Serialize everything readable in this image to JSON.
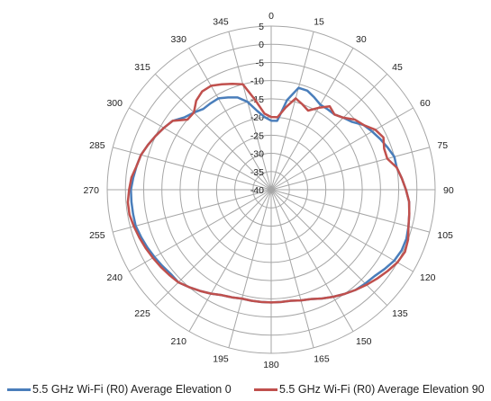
{
  "chart_data": {
    "type": "polar-line",
    "angle_ticks": [
      "0",
      "15",
      "30",
      "45",
      "60",
      "75",
      "90",
      "105",
      "120",
      "135",
      "150",
      "165",
      "180",
      "195",
      "210",
      "225",
      "240",
      "255",
      "270",
      "285",
      "300",
      "315",
      "330",
      "345"
    ],
    "radial_ticks": [
      "5",
      "0",
      "-5",
      "-10",
      "-15",
      "-20",
      "-25",
      "-30",
      "-35",
      "-40"
    ],
    "rlim": [
      -40,
      5
    ],
    "grid": true,
    "legend_position": "bottom",
    "series": [
      {
        "name": "5.5 GHz Wi-Fi (R0) Average Elevation 0",
        "color": "#4a7ebb",
        "points": [
          [
            0,
            -21
          ],
          [
            5,
            -21
          ],
          [
            10,
            -15
          ],
          [
            15,
            -11
          ],
          [
            20,
            -11
          ],
          [
            25,
            -12
          ],
          [
            30,
            -13
          ],
          [
            35,
            -13
          ],
          [
            40,
            -13
          ],
          [
            45,
            -12
          ],
          [
            50,
            -11
          ],
          [
            55,
            -9
          ],
          [
            60,
            -8
          ],
          [
            65,
            -7
          ],
          [
            70,
            -6
          ],
          [
            75,
            -5
          ],
          [
            80,
            -5
          ],
          [
            85,
            -4
          ],
          [
            90,
            -3
          ],
          [
            95,
            -2
          ],
          [
            100,
            -1.5
          ],
          [
            105,
            -1
          ],
          [
            110,
            -0.5
          ],
          [
            115,
            -0.5
          ],
          [
            120,
            -1
          ],
          [
            125,
            -2
          ],
          [
            130,
            -3
          ],
          [
            135,
            -3.5
          ],
          [
            140,
            -4
          ],
          [
            145,
            -5
          ],
          [
            150,
            -6
          ],
          [
            155,
            -7
          ],
          [
            160,
            -8
          ],
          [
            165,
            -8.5
          ],
          [
            170,
            -9
          ],
          [
            175,
            -9
          ],
          [
            180,
            -9
          ],
          [
            185,
            -9
          ],
          [
            190,
            -9
          ],
          [
            195,
            -9
          ],
          [
            200,
            -8.5
          ],
          [
            205,
            -8
          ],
          [
            210,
            -7
          ],
          [
            215,
            -6
          ],
          [
            220,
            -5
          ],
          [
            225,
            -4
          ],
          [
            230,
            -4
          ],
          [
            235,
            -3.5
          ],
          [
            240,
            -3
          ],
          [
            245,
            -2.5
          ],
          [
            250,
            -2
          ],
          [
            255,
            -1.5
          ],
          [
            260,
            -1.5
          ],
          [
            265,
            -1.5
          ],
          [
            270,
            -1.5
          ],
          [
            275,
            -2
          ],
          [
            280,
            -2.5
          ],
          [
            285,
            -3
          ],
          [
            290,
            -4
          ],
          [
            295,
            -5
          ],
          [
            300,
            -6
          ],
          [
            305,
            -7
          ],
          [
            310,
            -9
          ],
          [
            315,
            -10
          ],
          [
            320,
            -11
          ],
          [
            325,
            -11
          ],
          [
            330,
            -11
          ],
          [
            335,
            -12
          ],
          [
            340,
            -13
          ],
          [
            345,
            -15
          ],
          [
            350,
            -18
          ],
          [
            355,
            -20
          ]
        ]
      },
      {
        "name": "5.5 GHz Wi-Fi (R0) Average Elevation 90",
        "color": "#c0504d",
        "points": [
          [
            0,
            -20
          ],
          [
            5,
            -20
          ],
          [
            10,
            -17
          ],
          [
            15,
            -14
          ],
          [
            20,
            -15
          ],
          [
            25,
            -16
          ],
          [
            30,
            -14
          ],
          [
            35,
            -12
          ],
          [
            40,
            -13
          ],
          [
            45,
            -12
          ],
          [
            50,
            -10
          ],
          [
            55,
            -9
          ],
          [
            60,
            -7
          ],
          [
            65,
            -6
          ],
          [
            70,
            -7
          ],
          [
            75,
            -7
          ],
          [
            80,
            -5
          ],
          [
            85,
            -4
          ],
          [
            90,
            -3
          ],
          [
            95,
            -2
          ],
          [
            100,
            -1.5
          ],
          [
            105,
            -1
          ],
          [
            110,
            0
          ],
          [
            115,
            0.5
          ],
          [
            120,
            0
          ],
          [
            125,
            -1
          ],
          [
            130,
            -2
          ],
          [
            135,
            -3
          ],
          [
            140,
            -4
          ],
          [
            145,
            -5
          ],
          [
            150,
            -6
          ],
          [
            155,
            -7
          ],
          [
            160,
            -8
          ],
          [
            165,
            -8.5
          ],
          [
            170,
            -9
          ],
          [
            175,
            -9
          ],
          [
            180,
            -9
          ],
          [
            185,
            -9
          ],
          [
            190,
            -9
          ],
          [
            195,
            -9
          ],
          [
            200,
            -8.5
          ],
          [
            205,
            -8
          ],
          [
            210,
            -7
          ],
          [
            215,
            -6
          ],
          [
            220,
            -5
          ],
          [
            225,
            -4
          ],
          [
            230,
            -3.5
          ],
          [
            235,
            -3
          ],
          [
            240,
            -2.5
          ],
          [
            245,
            -2
          ],
          [
            250,
            -1.5
          ],
          [
            255,
            -1
          ],
          [
            260,
            -0.5
          ],
          [
            265,
            -0.5
          ],
          [
            270,
            -1
          ],
          [
            275,
            -1.5
          ],
          [
            280,
            -2.5
          ],
          [
            285,
            -3
          ],
          [
            290,
            -4
          ],
          [
            295,
            -5
          ],
          [
            300,
            -6
          ],
          [
            305,
            -7
          ],
          [
            310,
            -10
          ],
          [
            315,
            -10
          ],
          [
            320,
            -8
          ],
          [
            325,
            -7
          ],
          [
            330,
            -7
          ],
          [
            335,
            -8
          ],
          [
            340,
            -9
          ],
          [
            345,
            -10
          ],
          [
            350,
            -15
          ],
          [
            355,
            -19
          ]
        ]
      }
    ]
  }
}
